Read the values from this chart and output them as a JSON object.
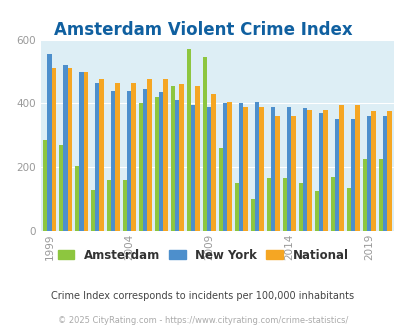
{
  "title": "Amsterdam Violent Crime Index",
  "title_color": "#1060a0",
  "plot_bg_color": "#ddeef5",
  "fig_bg_color": "#ffffff",
  "years": [
    1999,
    2000,
    2001,
    2002,
    2003,
    2004,
    2005,
    2006,
    2007,
    2008,
    2009,
    2010,
    2011,
    2012,
    2013,
    2014,
    2015,
    2016,
    2017,
    2018,
    2019,
    2020
  ],
  "amsterdam": [
    285,
    270,
    205,
    130,
    160,
    160,
    400,
    420,
    455,
    570,
    545,
    260,
    150,
    100,
    165,
    165,
    150,
    125,
    170,
    135,
    225,
    225
  ],
  "new_york": [
    555,
    520,
    500,
    465,
    440,
    440,
    445,
    435,
    410,
    395,
    388,
    400,
    400,
    405,
    390,
    390,
    385,
    370,
    350,
    350,
    360,
    360
  ],
  "national": [
    510,
    510,
    500,
    475,
    465,
    465,
    475,
    475,
    460,
    455,
    430,
    405,
    388,
    388,
    362,
    362,
    378,
    378,
    395,
    395,
    375,
    375
  ],
  "amsterdam_color": "#8dc63f",
  "new_york_color": "#4d8fcc",
  "national_color": "#f5a623",
  "ylim": [
    0,
    600
  ],
  "yticks": [
    0,
    200,
    400,
    600
  ],
  "title_fontsize": 12,
  "legend_labels": [
    "Amsterdam",
    "New York",
    "National"
  ],
  "footnote1": "Crime Index corresponds to incidents per 100,000 inhabitants",
  "footnote2": "© 2025 CityRating.com - https://www.cityrating.com/crime-statistics/",
  "footnote1_color": "#444444",
  "footnote2_color": "#aaaaaa",
  "grid_color": "#ffffff",
  "tick_label_color": "#999999",
  "xtick_years": [
    1999,
    2004,
    2009,
    2014,
    2019
  ]
}
